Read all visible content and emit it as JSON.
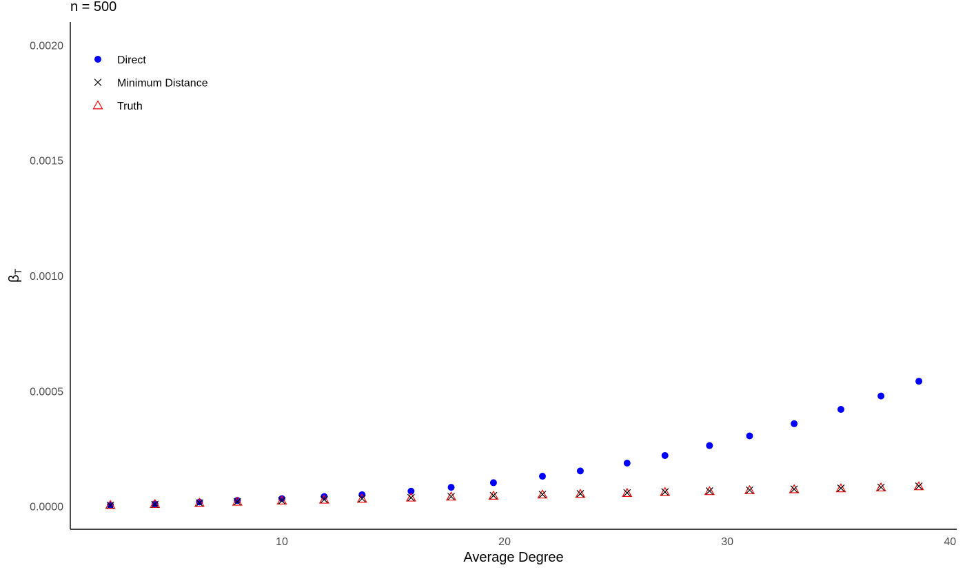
{
  "chart_data": {
    "type": "scatter",
    "title": "n = 500",
    "xlabel": "Average Degree",
    "ylabel": "β",
    "ylabel_subscript": "T",
    "xlim": [
      0.5,
      40.3
    ],
    "ylim": [
      -0.0001,
      0.0021
    ],
    "x_ticks": [
      10,
      20,
      30,
      40
    ],
    "x_tick_labels": [
      "10",
      "20",
      "30",
      "40"
    ],
    "y_ticks": [
      0,
      0.0005,
      0.001,
      0.0015,
      0.002
    ],
    "y_tick_labels": [
      "0.0000",
      "0.0005",
      "0.0010",
      "0.0015",
      "0.0020"
    ],
    "grid": false,
    "legend_position": "top-left",
    "x": [
      2.3,
      4.3,
      6.3,
      8.0,
      10.0,
      11.9,
      13.6,
      15.8,
      17.6,
      19.5,
      21.7,
      23.4,
      25.5,
      27.2,
      29.2,
      31.0,
      33.0,
      35.1,
      36.9,
      38.6
    ],
    "series": [
      {
        "name": "Direct",
        "color": "#0000ff",
        "marker": "circle",
        "values": [
          5e-06,
          1e-05,
          1.8e-05,
          2.5e-05,
          3.3e-05,
          4.2e-05,
          5e-05,
          6.5e-05,
          8.2e-05,
          0.000102,
          0.00013,
          0.000153,
          0.000187,
          0.00022,
          0.000263,
          0.000305,
          0.000358,
          0.00042,
          0.000478,
          0.000542
        ]
      },
      {
        "name": "Minimum Distance",
        "color": "#000000",
        "marker": "x",
        "values": [
          4e-06,
          8e-06,
          1.4e-05,
          1.9e-05,
          2.4e-05,
          2.9e-05,
          3.3e-05,
          3.7e-05,
          4.2e-05,
          4.6e-05,
          5.1e-05,
          5.4e-05,
          5.8e-05,
          6.2e-05,
          6.6e-05,
          7e-05,
          7.4e-05,
          7.8e-05,
          8.2e-05,
          8.7e-05
        ]
      },
      {
        "name": "Truth",
        "color": "#ff0000",
        "marker": "triangle",
        "values": [
          5e-06,
          9e-06,
          1.4e-05,
          1.9e-05,
          2.4e-05,
          2.8e-05,
          3.2e-05,
          3.7e-05,
          4.1e-05,
          4.5e-05,
          5e-05,
          5.3e-05,
          5.7e-05,
          6.1e-05,
          6.5e-05,
          6.9e-05,
          7.3e-05,
          7.7e-05,
          8.1e-05,
          8.6e-05
        ]
      }
    ]
  }
}
